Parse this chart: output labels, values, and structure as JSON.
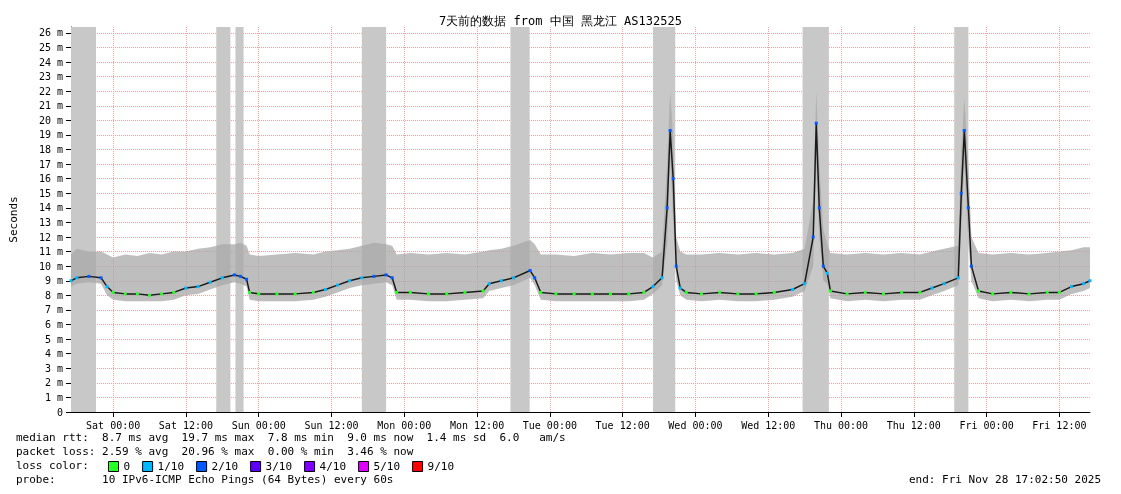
{
  "chart_data": {
    "type": "line",
    "title": "7天前的数据 from 中国 黑龙江 AS132525",
    "ylabel": "Seconds",
    "x": [
      "2025-11-21T17:03",
      "2025-11-21T18:00",
      "2025-11-21T20:00",
      "2025-11-21T22:00",
      "2025-11-21T23:00",
      "2025-11-22T00:00",
      "2025-11-22T02:00",
      "2025-11-22T04:00",
      "2025-11-22T06:00",
      "2025-11-22T08:00",
      "2025-11-22T10:00",
      "2025-11-22T12:00",
      "2025-11-22T14:00",
      "2025-11-22T16:00",
      "2025-11-22T18:00",
      "2025-11-22T20:00",
      "2025-11-22T21:00",
      "2025-11-22T22:00",
      "2025-11-22T22:30",
      "2025-11-23T00:00",
      "2025-11-23T03:00",
      "2025-11-23T06:00",
      "2025-11-23T09:00",
      "2025-11-23T11:00",
      "2025-11-23T13:00",
      "2025-11-23T15:00",
      "2025-11-23T17:00",
      "2025-11-23T19:00",
      "2025-11-23T21:00",
      "2025-11-23T22:00",
      "2025-11-23T22:45",
      "2025-11-24T01:00",
      "2025-11-24T04:00",
      "2025-11-24T07:00",
      "2025-11-24T10:00",
      "2025-11-24T13:00",
      "2025-11-24T14:00",
      "2025-11-24T16:00",
      "2025-11-24T18:00",
      "2025-11-24T20:45",
      "2025-11-24T21:30",
      "2025-11-24T22:30",
      "2025-11-25T01:00",
      "2025-11-25T04:00",
      "2025-11-25T07:00",
      "2025-11-25T10:00",
      "2025-11-25T13:00",
      "2025-11-25T15:30",
      "2025-11-25T17:00",
      "2025-11-25T18:30",
      "2025-11-25T19:20",
      "2025-11-25T19:50",
      "2025-11-25T20:20",
      "2025-11-25T20:50",
      "2025-11-25T21:30",
      "2025-11-25T22:30",
      "2025-11-26T01:00",
      "2025-11-26T04:00",
      "2025-11-26T07:00",
      "2025-11-26T10:00",
      "2025-11-26T13:00",
      "2025-11-26T16:00",
      "2025-11-26T18:00",
      "2025-11-26T19:25",
      "2025-11-26T19:55",
      "2025-11-26T20:25",
      "2025-11-26T21:05",
      "2025-11-26T21:45",
      "2025-11-26T22:15",
      "2025-11-27T01:00",
      "2025-11-27T04:00",
      "2025-11-27T07:00",
      "2025-11-27T10:00",
      "2025-11-27T13:00",
      "2025-11-27T15:00",
      "2025-11-27T17:00",
      "2025-11-27T19:20",
      "2025-11-27T19:50",
      "2025-11-27T20:20",
      "2025-11-27T21:00",
      "2025-11-27T21:30",
      "2025-11-27T22:40",
      "2025-11-28T01:00",
      "2025-11-28T04:00",
      "2025-11-28T07:00",
      "2025-11-28T10:00",
      "2025-11-28T12:00",
      "2025-11-28T14:00",
      "2025-11-28T16:00",
      "2025-11-28T17:03"
    ],
    "series": [
      {
        "color": "#1a1a1a",
        "marker": "none",
        "values": [
          9.0,
          9.2,
          9.3,
          9.2,
          8.6,
          8.2,
          8.1,
          8.1,
          8.0,
          8.1,
          8.2,
          8.5,
          8.6,
          8.9,
          9.2,
          9.4,
          9.3,
          9.1,
          8.2,
          8.1,
          8.1,
          8.1,
          8.2,
          8.4,
          8.7,
          9.0,
          9.2,
          9.3,
          9.4,
          9.2,
          8.2,
          8.2,
          8.1,
          8.1,
          8.2,
          8.3,
          8.8,
          9.0,
          9.2,
          9.7,
          9.2,
          8.2,
          8.1,
          8.1,
          8.1,
          8.1,
          8.1,
          8.2,
          8.6,
          9.2,
          14.0,
          19.3,
          16.0,
          10.0,
          8.5,
          8.2,
          8.1,
          8.2,
          8.1,
          8.1,
          8.2,
          8.4,
          8.8,
          12.0,
          19.8,
          14.0,
          10.0,
          9.5,
          8.3,
          8.1,
          8.2,
          8.1,
          8.2,
          8.2,
          8.5,
          8.8,
          9.2,
          15.0,
          19.3,
          14.0,
          10.0,
          8.3,
          8.1,
          8.2,
          8.1,
          8.2,
          8.2,
          8.6,
          8.8,
          9.0
        ],
        "lower": [
          8.6,
          8.8,
          8.9,
          8.8,
          8.0,
          7.7,
          7.6,
          7.6,
          7.6,
          7.6,
          7.7,
          8.0,
          8.1,
          8.4,
          8.7,
          8.9,
          8.8,
          8.6,
          7.7,
          7.6,
          7.6,
          7.6,
          7.7,
          7.9,
          8.2,
          8.5,
          8.7,
          8.8,
          8.9,
          8.7,
          7.7,
          7.7,
          7.6,
          7.6,
          7.7,
          7.8,
          8.3,
          8.5,
          8.7,
          9.2,
          8.7,
          7.7,
          7.6,
          7.6,
          7.6,
          7.6,
          7.6,
          7.7,
          8.1,
          8.7,
          11.5,
          17.5,
          13.0,
          9.0,
          8.0,
          7.7,
          7.6,
          7.7,
          7.6,
          7.6,
          7.7,
          7.9,
          8.3,
          10.0,
          17.0,
          12.0,
          9.0,
          8.8,
          7.8,
          7.6,
          7.7,
          7.6,
          7.7,
          7.7,
          8.0,
          8.3,
          8.7,
          12.5,
          17.0,
          11.5,
          9.0,
          7.8,
          7.6,
          7.7,
          7.6,
          7.7,
          7.7,
          8.1,
          8.3,
          8.5
        ],
        "upper": [
          10.8,
          11.2,
          11.0,
          11.0,
          10.8,
          10.6,
          10.8,
          10.7,
          10.9,
          10.8,
          11.0,
          11.0,
          11.2,
          11.3,
          11.5,
          11.5,
          11.6,
          11.4,
          10.8,
          10.7,
          10.8,
          10.9,
          10.8,
          11.0,
          11.1,
          11.2,
          11.4,
          11.6,
          11.5,
          11.4,
          10.8,
          10.9,
          10.8,
          10.9,
          10.8,
          11.0,
          11.1,
          11.2,
          11.4,
          11.8,
          11.5,
          10.8,
          10.8,
          10.7,
          10.9,
          10.8,
          10.9,
          10.9,
          10.6,
          11.0,
          17.0,
          22.0,
          19.0,
          12.0,
          11.0,
          10.8,
          10.8,
          10.9,
          10.8,
          10.9,
          10.8,
          10.9,
          11.2,
          14.5,
          22.0,
          17.0,
          12.5,
          11.5,
          10.9,
          10.8,
          10.9,
          10.8,
          10.9,
          10.8,
          11.0,
          11.2,
          11.4,
          18.0,
          21.5,
          17.0,
          12.0,
          10.9,
          10.8,
          10.9,
          10.8,
          10.9,
          11.0,
          11.1,
          11.3,
          11.3
        ]
      },
      {
        "type": "scatter",
        "name": "0",
        "color": "#26ff26",
        "marker": "square",
        "x": [
          "2025-11-22T00:00",
          "2025-11-22T02:00",
          "2025-11-22T04:00",
          "2025-11-22T06:00",
          "2025-11-22T08:00",
          "2025-11-22T10:00",
          "2025-11-22T22:30",
          "2025-11-23T00:00",
          "2025-11-23T03:00",
          "2025-11-23T06:00",
          "2025-11-23T09:00",
          "2025-11-23T22:45",
          "2025-11-24T01:00",
          "2025-11-24T04:00",
          "2025-11-24T07:00",
          "2025-11-24T10:00",
          "2025-11-24T13:00",
          "2025-11-24T22:30",
          "2025-11-25T01:00",
          "2025-11-25T04:00",
          "2025-11-25T07:00",
          "2025-11-25T10:00",
          "2025-11-25T13:00",
          "2025-11-25T15:30",
          "2025-11-25T22:30",
          "2025-11-26T01:00",
          "2025-11-26T04:00",
          "2025-11-26T07:00",
          "2025-11-26T10:00",
          "2025-11-26T13:00",
          "2025-11-26T22:15",
          "2025-11-27T01:00",
          "2025-11-27T04:00",
          "2025-11-27T07:00",
          "2025-11-27T10:00",
          "2025-11-27T13:00",
          "2025-11-27T22:40",
          "2025-11-28T01:00",
          "2025-11-28T04:00",
          "2025-11-28T07:00",
          "2025-11-28T10:00",
          "2025-11-28T12:00"
        ],
        "values": [
          8.2,
          8.1,
          8.1,
          8.0,
          8.1,
          8.2,
          8.2,
          8.1,
          8.1,
          8.1,
          8.2,
          8.2,
          8.2,
          8.1,
          8.1,
          8.2,
          8.3,
          8.2,
          8.1,
          8.1,
          8.1,
          8.1,
          8.1,
          8.2,
          8.2,
          8.1,
          8.2,
          8.1,
          8.1,
          8.2,
          8.3,
          8.1,
          8.2,
          8.1,
          8.2,
          8.2,
          8.3,
          8.1,
          8.2,
          8.1,
          8.2,
          8.2
        ]
      },
      {
        "type": "scatter",
        "name": "1/10",
        "color": "#00b8ff",
        "marker": "square",
        "x": [
          "2025-11-21T17:03",
          "2025-11-21T18:00",
          "2025-11-21T23:00",
          "2025-11-22T12:00",
          "2025-11-22T14:00",
          "2025-11-22T16:00",
          "2025-11-22T18:00",
          "2025-11-23T11:00",
          "2025-11-23T13:00",
          "2025-11-23T15:00",
          "2025-11-23T17:00",
          "2025-11-24T14:00",
          "2025-11-24T16:00",
          "2025-11-24T18:00",
          "2025-11-25T17:00",
          "2025-11-25T18:30",
          "2025-11-25T21:30",
          "2025-11-26T16:00",
          "2025-11-26T18:00",
          "2025-11-26T21:45",
          "2025-11-27T15:00",
          "2025-11-27T17:00",
          "2025-11-27T19:20",
          "2025-11-28T14:00",
          "2025-11-28T16:00",
          "2025-11-28T17:03"
        ],
        "values": [
          9.0,
          9.2,
          8.6,
          8.5,
          8.6,
          8.9,
          9.2,
          8.4,
          8.7,
          9.0,
          9.2,
          8.8,
          9.0,
          9.2,
          8.6,
          9.2,
          8.5,
          8.4,
          8.8,
          9.5,
          8.5,
          8.8,
          9.2,
          8.6,
          8.8,
          9.0
        ]
      },
      {
        "type": "scatter",
        "name": "2/10",
        "color": "#0059ff",
        "marker": "square",
        "x": [
          "2025-11-21T20:00",
          "2025-11-21T22:00",
          "2025-11-22T20:00",
          "2025-11-22T21:00",
          "2025-11-22T22:00",
          "2025-11-23T19:00",
          "2025-11-23T21:00",
          "2025-11-23T22:00",
          "2025-11-24T20:45",
          "2025-11-24T21:30",
          "2025-11-25T19:20",
          "2025-11-25T19:50",
          "2025-11-25T20:20",
          "2025-11-25T20:50",
          "2025-11-26T19:25",
          "2025-11-26T19:55",
          "2025-11-26T20:25",
          "2025-11-26T21:05",
          "2025-11-27T19:50",
          "2025-11-27T20:20",
          "2025-11-27T21:00",
          "2025-11-27T21:30"
        ],
        "values": [
          9.3,
          9.2,
          9.4,
          9.3,
          9.1,
          9.3,
          9.4,
          9.2,
          9.7,
          9.2,
          14.0,
          19.3,
          16.0,
          10.0,
          12.0,
          19.8,
          14.0,
          10.0,
          15.0,
          19.3,
          14.0,
          10.0
        ]
      },
      {
        "type": "scatter",
        "name": "3/10",
        "color": "#5e00ff",
        "marker": "square",
        "values": [
          null,
          null,
          null,
          null,
          null,
          null,
          null,
          null,
          null,
          null,
          null,
          null,
          null,
          null,
          null,
          null,
          null,
          null,
          null,
          null,
          null,
          null,
          null,
          null,
          null,
          null,
          null,
          null,
          null,
          null,
          null,
          null,
          null,
          null,
          null,
          null,
          null,
          null,
          null,
          null,
          null,
          null,
          null,
          null,
          null,
          null,
          null,
          null,
          null,
          null,
          null,
          null,
          null,
          null,
          null,
          null,
          null,
          null,
          null,
          null,
          null,
          null,
          null,
          null,
          null,
          null,
          null,
          null,
          null,
          null,
          null,
          null,
          null,
          null,
          null,
          null,
          null,
          null,
          null,
          null,
          null,
          null,
          null,
          null,
          null,
          null,
          null,
          null,
          null,
          null
        ]
      },
      {
        "type": "scatter",
        "name": "4/10",
        "color": "#7e00ff",
        "marker": "square",
        "values": [
          null,
          null,
          null,
          null,
          null,
          null,
          null,
          null,
          null,
          null,
          null,
          null,
          null,
          null,
          null,
          null,
          null,
          null,
          null,
          null,
          null,
          null,
          null,
          null,
          null,
          null,
          null,
          null,
          null,
          null,
          null,
          null,
          null,
          null,
          null,
          null,
          null,
          null,
          null,
          null,
          null,
          null,
          null,
          null,
          null,
          null,
          null,
          null,
          null,
          null,
          null,
          null,
          null,
          null,
          null,
          null,
          null,
          null,
          null,
          null,
          null,
          null,
          null,
          null,
          null,
          null,
          null,
          null,
          null,
          null,
          null,
          null,
          null,
          null,
          null,
          null,
          null,
          null,
          null,
          null,
          null,
          null,
          null,
          null,
          null,
          null,
          null,
          null,
          null,
          null
        ]
      },
      {
        "type": "scatter",
        "name": "5/10",
        "color": "#dd00ff",
        "marker": "square",
        "values": [
          null,
          null,
          null,
          null,
          null,
          null,
          null,
          null,
          null,
          null,
          null,
          null,
          null,
          null,
          null,
          null,
          null,
          null,
          null,
          null,
          null,
          null,
          null,
          null,
          null,
          null,
          null,
          null,
          null,
          null,
          null,
          null,
          null,
          null,
          null,
          null,
          null,
          null,
          null,
          null,
          null,
          null,
          null,
          null,
          null,
          null,
          null,
          null,
          null,
          null,
          null,
          null,
          null,
          null,
          null,
          null,
          null,
          null,
          null,
          null,
          null,
          null,
          null,
          null,
          null,
          null,
          null,
          null,
          null,
          null,
          null,
          null,
          null,
          null,
          null,
          null,
          null,
          null,
          null,
          null,
          null,
          null,
          null,
          null,
          null,
          null,
          null,
          null,
          null,
          null
        ]
      },
      {
        "type": "scatter",
        "name": "9/10",
        "color": "#ff0000",
        "marker": "square",
        "values": [
          null,
          null,
          null,
          null,
          null,
          null,
          null,
          null,
          null,
          null,
          null,
          null,
          null,
          null,
          null,
          null,
          null,
          null,
          null,
          null,
          null,
          null,
          null,
          null,
          null,
          null,
          null,
          null,
          null,
          null,
          null,
          null,
          null,
          null,
          null,
          null,
          null,
          null,
          null,
          null,
          null,
          null,
          null,
          null,
          null,
          null,
          null,
          null,
          null,
          null,
          null,
          null,
          null,
          null,
          null,
          null,
          null,
          null,
          null,
          null,
          null,
          null,
          null,
          null,
          null,
          null,
          null,
          null,
          null,
          null,
          null,
          null,
          null,
          null,
          null,
          null,
          null,
          null,
          null,
          null,
          null,
          null,
          null,
          null,
          null,
          null,
          null,
          null,
          null,
          null
        ]
      }
    ],
    "bands": [
      {
        "axis": "x",
        "from": "2025-11-21T17:03",
        "to": "2025-11-21T21:10",
        "color": "#c8c8c8"
      },
      {
        "axis": "x",
        "from": "2025-11-22T17:00",
        "to": "2025-11-22T19:20",
        "color": "#c8c8c8"
      },
      {
        "axis": "x",
        "from": "2025-11-22T20:10",
        "to": "2025-11-22T21:30",
        "color": "#c8c8c8"
      },
      {
        "axis": "x",
        "from": "2025-11-23T17:00",
        "to": "2025-11-23T21:00",
        "color": "#c8c8c8"
      },
      {
        "axis": "x",
        "from": "2025-11-24T17:30",
        "to": "2025-11-24T20:40",
        "color": "#c8c8c8"
      },
      {
        "axis": "x",
        "from": "2025-11-25T17:00",
        "to": "2025-11-25T20:40",
        "color": "#c8c8c8"
      },
      {
        "axis": "x",
        "from": "2025-11-26T17:40",
        "to": "2025-11-26T22:00",
        "color": "#c8c8c8"
      },
      {
        "axis": "x",
        "from": "2025-11-27T18:40",
        "to": "2025-11-27T21:00",
        "color": "#c8c8c8"
      }
    ],
    "xlim": [
      "2025-11-21T17:03",
      "2025-11-28T17:03"
    ],
    "xticks": [
      {
        "value": "2025-11-22T00:00",
        "label": "Sat 00:00"
      },
      {
        "value": "2025-11-22T12:00",
        "label": "Sat 12:00"
      },
      {
        "value": "2025-11-23T00:00",
        "label": "Sun 00:00"
      },
      {
        "value": "2025-11-23T12:00",
        "label": "Sun 12:00"
      },
      {
        "value": "2025-11-24T00:00",
        "label": "Mon 00:00"
      },
      {
        "value": "2025-11-24T12:00",
        "label": "Mon 12:00"
      },
      {
        "value": "2025-11-25T00:00",
        "label": "Tue 00:00"
      },
      {
        "value": "2025-11-25T12:00",
        "label": "Tue 12:00"
      },
      {
        "value": "2025-11-26T00:00",
        "label": "Wed 00:00"
      },
      {
        "value": "2025-11-26T12:00",
        "label": "Wed 12:00"
      },
      {
        "value": "2025-11-27T00:00",
        "label": "Thu 00:00"
      },
      {
        "value": "2025-11-27T12:00",
        "label": "Thu 12:00"
      },
      {
        "value": "2025-11-28T00:00",
        "label": "Fri 00:00"
      },
      {
        "value": "2025-11-28T12:00",
        "label": "Fri 12:00"
      }
    ],
    "ylim": [
      0,
      26.4
    ],
    "yticks": [
      0,
      {
        "value": 1,
        "label": "1 m"
      },
      {
        "value": 2,
        "label": "2 m"
      },
      {
        "value": 3,
        "label": "3 m"
      },
      {
        "value": 4,
        "label": "4 m"
      },
      {
        "value": 5,
        "label": "5 m"
      },
      {
        "value": 6,
        "label": "6 m"
      },
      {
        "value": 7,
        "label": "7 m"
      },
      {
        "value": 8,
        "label": "8 m"
      },
      {
        "value": 9,
        "label": "9 m"
      },
      {
        "value": 10,
        "label": "10 m"
      },
      {
        "value": 11,
        "label": "11 m"
      },
      {
        "value": 12,
        "label": "12 m"
      },
      {
        "value": 13,
        "label": "13 m"
      },
      {
        "value": 14,
        "label": "14 m"
      },
      {
        "value": 15,
        "label": "15 m"
      },
      {
        "value": 16,
        "label": "16 m"
      },
      {
        "value": 17,
        "label": "17 m"
      },
      {
        "value": 18,
        "label": "18 m"
      },
      {
        "value": 19,
        "label": "19 m"
      },
      {
        "value": 20,
        "label": "20 m"
      },
      {
        "value": 21,
        "label": "21 m"
      },
      {
        "value": 22,
        "label": "22 m"
      },
      {
        "value": 23,
        "label": "23 m"
      },
      {
        "value": 24,
        "label": "24 m"
      },
      {
        "value": 25,
        "label": "25 m"
      },
      {
        "value": 26,
        "label": "26 m"
      }
    ],
    "grid": true,
    "legend": "bottom left",
    "legend_title": "loss color:",
    "annotations": [
      "median rtt:  8.7 ms avg  19.7 ms max  7.8 ms min  9.0 ms now  1.4 ms sd  6.0   am/s",
      "packet loss: 2.59 % avg  20.96 % max  0.00 % min  3.46 % now",
      "probe:       10 IPv6-ICMP Echo Pings (64 Bytes) every 60s",
      "end: Fri Nov 28 17:02:50 2025"
    ]
  }
}
